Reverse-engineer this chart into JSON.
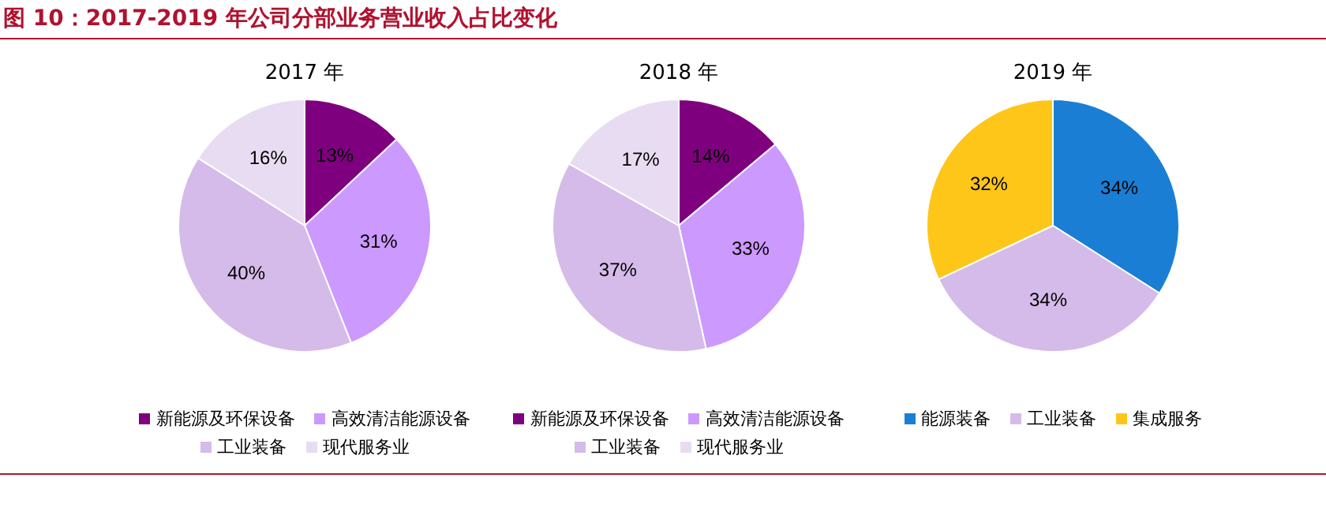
{
  "chart_data": [
    {
      "type": "pie",
      "title": "2017 年",
      "annotations": [
        "图 10：2017-2019 年公司分部业务营业收入占比变化"
      ],
      "categories": [
        "新能源及环保设备",
        "高效清洁能源设备",
        "工业装备",
        "现代服务业"
      ],
      "values": [
        13,
        31,
        40,
        16
      ],
      "colors": [
        "#7f007f",
        "#cc99ff",
        "#d5bbe9",
        "#e8dcf2"
      ],
      "value_labels": [
        "13%",
        "31%",
        "40%",
        "16%"
      ],
      "legend": "bottom"
    },
    {
      "type": "pie",
      "title": "2018 年",
      "categories": [
        "新能源及环保设备",
        "高效清洁能源设备",
        "工业装备",
        "现代服务业"
      ],
      "values": [
        14,
        33,
        37,
        17
      ],
      "colors": [
        "#7f007f",
        "#cc99ff",
        "#d5bbe9",
        "#e8dcf2"
      ],
      "value_labels": [
        "14%",
        "33%",
        "37%",
        "17%"
      ],
      "legend": "bottom"
    },
    {
      "type": "pie",
      "title": "2019 年",
      "categories": [
        "能源装备",
        "工业装备",
        "集成服务"
      ],
      "values": [
        34,
        34,
        32
      ],
      "colors": [
        "#1a7fd4",
        "#d5bbe9",
        "#ffc61a"
      ],
      "value_labels": [
        "34%",
        "34%",
        "32%"
      ],
      "legend": "bottom"
    }
  ]
}
